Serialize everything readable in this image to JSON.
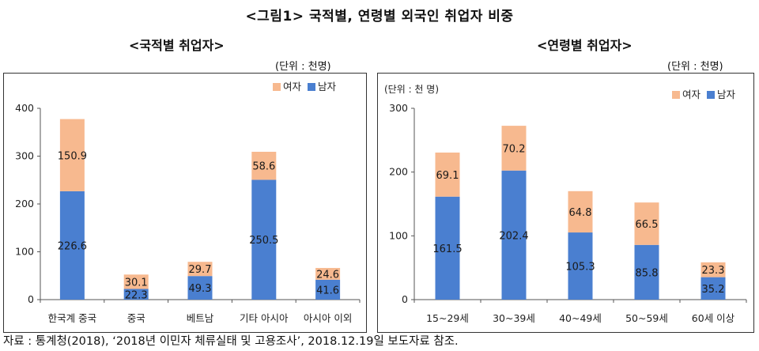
{
  "page_title": "<그림1> 국적별, 연령별 외국인 취업자 비중",
  "source": "자료 : 통계청(2018), ‘2018년 이민자 체류실태 및 고용조사’, 2018.12.19일 보도자료 참조.",
  "colors": {
    "male": "#4a7fd0",
    "female": "#f7b98f",
    "axis": "#555555",
    "text": "#222222"
  },
  "chart_data": [
    {
      "type": "bar",
      "stacked": true,
      "subtitle": "<국적별 취업자>",
      "unit_outer": "(단위 : 천명)",
      "unit_inner": "",
      "categories": [
        "한국계 중국",
        "중국",
        "베트남",
        "기타 아시아",
        "아시아 이외"
      ],
      "series": [
        {
          "name": "남자",
          "values": [
            226.6,
            22.3,
            49.3,
            250.5,
            41.6
          ],
          "labels": [
            "226.6",
            "22.3",
            "49.3",
            "250.5",
            "41.6"
          ]
        },
        {
          "name": "여자",
          "values": [
            150.9,
            30.1,
            29.7,
            58.6,
            24.6
          ],
          "labels": [
            "150.9",
            "30.1",
            "29.7",
            "58.6",
            "24.6"
          ]
        }
      ],
      "ylim": [
        0,
        400
      ],
      "yticks": [
        0,
        100,
        200,
        300,
        400
      ],
      "ytick_labels": [
        "0",
        "100",
        "200",
        "300",
        "400"
      ],
      "legend_position": "top-right",
      "grid": false
    },
    {
      "type": "bar",
      "stacked": true,
      "subtitle": "<연령별 취업자>",
      "unit_outer": "(단위 : 천명)",
      "unit_inner": "(단위 : 천 명)",
      "categories": [
        "15~29세",
        "30~39세",
        "40~49세",
        "50~59세",
        "60세 이상"
      ],
      "series": [
        {
          "name": "남자",
          "values": [
            161.5,
            202.4,
            105.3,
            85.8,
            35.2
          ],
          "labels": [
            "161.5",
            "202.4",
            "105.3",
            "85.8",
            "35.2"
          ]
        },
        {
          "name": "여자",
          "values": [
            69.1,
            70.2,
            64.8,
            66.5,
            23.3
          ],
          "labels": [
            "69.1",
            "70.2",
            "64.8",
            "66.5",
            "23.3"
          ]
        }
      ],
      "ylim": [
        0,
        300
      ],
      "yticks": [
        0,
        100,
        200,
        300
      ],
      "ytick_labels": [
        "0",
        "100",
        "200",
        "300"
      ],
      "legend_position": "top-right",
      "grid": false
    }
  ]
}
